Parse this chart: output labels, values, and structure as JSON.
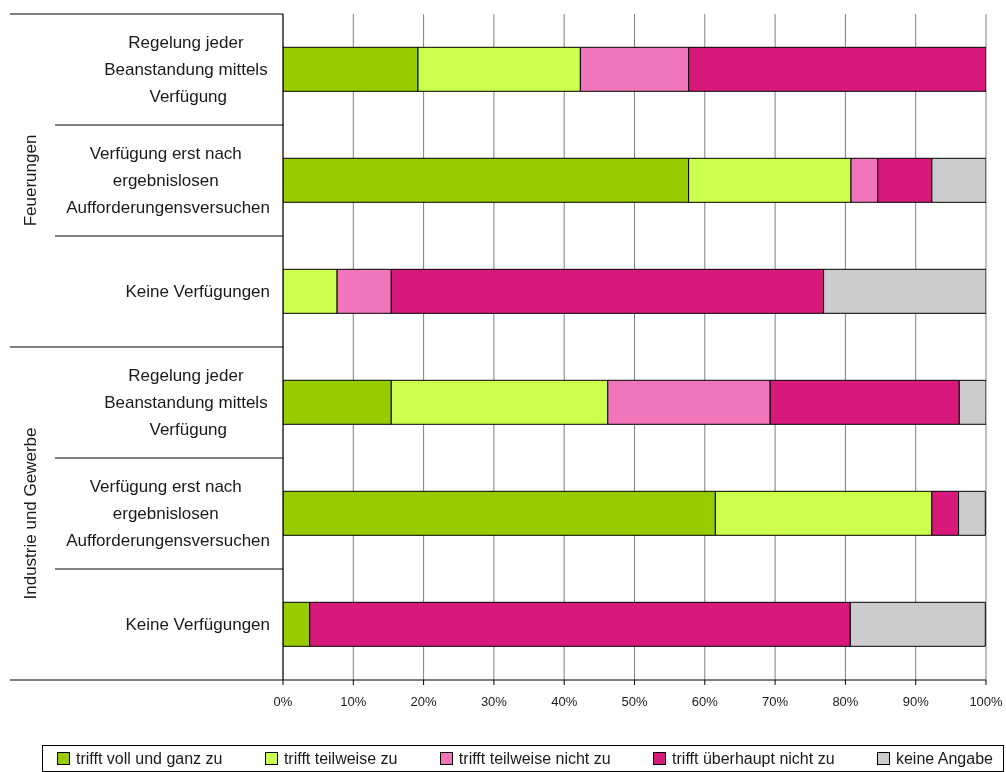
{
  "chart_data": {
    "type": "bar",
    "orientation": "horizontal",
    "stacked": true,
    "categories": [
      "Regelung jeder Beanstandung mittels Verfügung",
      "Verfügung erst nach ergebnislosen Aufforderungensversuchen",
      "Keine Verfügungen",
      "Regelung jeder Beanstandung mittels Verfügung",
      "Verfügung erst nach ergebnislosen Aufforderungensversuchen",
      "Keine Verfügungen"
    ],
    "series": [
      {
        "name": "trifft voll und ganz zu",
        "color": "#99cc00",
        "values": [
          19.2,
          57.7,
          0,
          15.4,
          61.5,
          3.8
        ]
      },
      {
        "name": "trifft teilweise zu",
        "color": "#ccff4d",
        "values": [
          23.1,
          23.1,
          7.7,
          30.8,
          30.8,
          0
        ]
      },
      {
        "name": "trifft teilweise nicht zu",
        "color": "#f075ba",
        "values": [
          15.4,
          3.8,
          7.7,
          23.1,
          0,
          0
        ]
      },
      {
        "name": "trifft überhaupt nicht zu",
        "color": "#d6197a",
        "values": [
          42.3,
          7.7,
          61.5,
          26.9,
          3.8,
          76.9
        ]
      },
      {
        "name": "keine Angabe",
        "color": "#cccccc",
        "values": [
          0,
          7.7,
          23.1,
          3.8,
          3.8,
          19.2
        ]
      }
    ],
    "xlim": [
      0,
      100
    ],
    "xticks": [
      {
        "value": 0,
        "label": "0%"
      },
      {
        "value": 10,
        "label": "10%"
      },
      {
        "value": 20,
        "label": "20%"
      },
      {
        "value": 30,
        "label": "30%"
      },
      {
        "value": 40,
        "label": "40%"
      },
      {
        "value": 50,
        "label": "50%"
      },
      {
        "value": 60,
        "label": "60%"
      },
      {
        "value": 70,
        "label": "70%"
      },
      {
        "value": 80,
        "label": "80%"
      },
      {
        "value": 90,
        "label": "90%"
      },
      {
        "value": 100,
        "label": "100%"
      }
    ],
    "grid": "x",
    "legend": "bottom",
    "annotations": [
      "Feuerungen",
      "Industrie und Gewerbe"
    ]
  }
}
